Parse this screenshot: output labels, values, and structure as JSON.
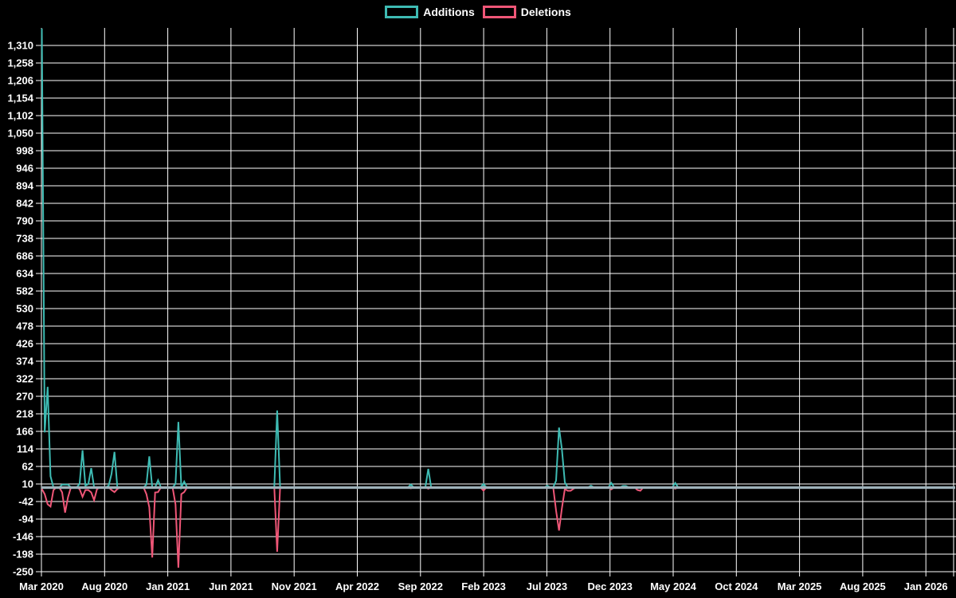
{
  "canvas": {
    "background_color": "#000000",
    "grid_color": "#ffffff",
    "text_color": "#ffffff",
    "zero_line_color": "#9EB2BA"
  },
  "legend": {
    "position": "top-center",
    "items": [
      {
        "label": "Additions",
        "color": "#3EBBB3"
      },
      {
        "label": "Deletions",
        "color": "#EF5677"
      }
    ]
  },
  "chart_data": {
    "type": "line",
    "title": "",
    "xlabel": "",
    "ylabel": "",
    "grid": true,
    "x_tick_labels": [
      "Mar 2020",
      "Aug 2020",
      "Jan 2021",
      "Jun 2021",
      "Nov 2021",
      "Apr 2022",
      "Sep 2022",
      "Feb 2023",
      "Jul 2023",
      "Dec 2023",
      "May 2024",
      "Oct 2024",
      "Mar 2025",
      "Aug 2025",
      "Jan 2026"
    ],
    "x_tick_interval_months": 5,
    "y_tick_labels": [
      "1,310",
      "1,258",
      "1,206",
      "1,154",
      "1,102",
      "1,050",
      "998",
      "946",
      "894",
      "842",
      "790",
      "738",
      "686",
      "634",
      "582",
      "530",
      "478",
      "426",
      "374",
      "322",
      "270",
      "218",
      "166",
      "114",
      "62",
      "10",
      "-42",
      "-94",
      "-146",
      "-198",
      "-250"
    ],
    "y_max": 1310,
    "y_min": -250,
    "y_step": 52,
    "weeks": {
      "description": "weekly data points; week_index 0 = mid-Mar 2020; values are 0 except sparse points listed",
      "count": 221,
      "approx_start": "2020-03-15",
      "approx_end": "2024-06-02"
    },
    "series": [
      {
        "name": "Additions",
        "color": "#3EBBB3",
        "sparse_points": [
          [
            0,
            1360
          ],
          [
            1,
            163
          ],
          [
            2,
            298
          ],
          [
            3,
            33
          ],
          [
            7,
            8
          ],
          [
            8,
            8
          ],
          [
            9,
            8
          ],
          [
            13,
            10
          ],
          [
            14,
            110
          ],
          [
            15,
            5
          ],
          [
            16,
            10
          ],
          [
            17,
            57
          ],
          [
            23,
            5
          ],
          [
            24,
            40
          ],
          [
            25,
            105
          ],
          [
            36,
            8
          ],
          [
            37,
            92
          ],
          [
            40,
            21
          ],
          [
            46,
            10
          ],
          [
            47,
            194
          ],
          [
            49,
            17
          ],
          [
            81,
            228
          ],
          [
            127,
            8
          ],
          [
            133,
            55
          ],
          [
            152,
            10
          ],
          [
            174,
            5
          ],
          [
            177,
            20
          ],
          [
            178,
            177
          ],
          [
            179,
            113
          ],
          [
            180,
            15
          ],
          [
            189,
            5
          ],
          [
            196,
            13
          ],
          [
            200,
            4
          ],
          [
            201,
            4
          ],
          [
            218,
            13
          ]
        ]
      },
      {
        "name": "Deletions",
        "color": "#EF5677",
        "sparse_points": [
          [
            0,
            -5
          ],
          [
            1,
            -20
          ],
          [
            2,
            -50
          ],
          [
            3,
            -57
          ],
          [
            4,
            -8
          ],
          [
            7,
            -15
          ],
          [
            8,
            -75
          ],
          [
            9,
            -30
          ],
          [
            13,
            -5
          ],
          [
            14,
            -28
          ],
          [
            15,
            -8
          ],
          [
            16,
            -8
          ],
          [
            17,
            -15
          ],
          [
            18,
            -38
          ],
          [
            19,
            -5
          ],
          [
            24,
            -8
          ],
          [
            25,
            -14
          ],
          [
            26,
            -5
          ],
          [
            36,
            -20
          ],
          [
            37,
            -59
          ],
          [
            38,
            -208
          ],
          [
            39,
            -15
          ],
          [
            40,
            -14
          ],
          [
            46,
            -50
          ],
          [
            47,
            -238
          ],
          [
            48,
            -20
          ],
          [
            49,
            -14
          ],
          [
            81,
            -191
          ],
          [
            127,
            -3
          ],
          [
            133,
            -4
          ],
          [
            152,
            -10
          ],
          [
            177,
            -69
          ],
          [
            178,
            -128
          ],
          [
            179,
            -62
          ],
          [
            180,
            -5
          ],
          [
            181,
            -10
          ],
          [
            182,
            -10
          ],
          [
            183,
            -4
          ],
          [
            189,
            -2
          ],
          [
            196,
            -6
          ],
          [
            205,
            -8
          ],
          [
            206,
            -10
          ],
          [
            218,
            -4
          ]
        ]
      }
    ]
  }
}
